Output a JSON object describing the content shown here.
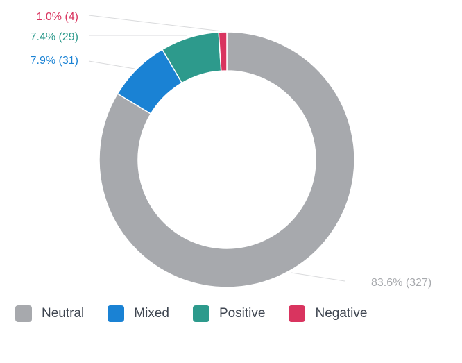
{
  "chart_data": {
    "type": "pie",
    "variant": "donut",
    "title": "",
    "series": [
      {
        "name": "Neutral",
        "value": 327,
        "percent_label": "83.6% (327)",
        "color": "#a7a9ad"
      },
      {
        "name": "Mixed",
        "value": 31,
        "percent_label": "7.9% (31)",
        "color": "#1a82d4"
      },
      {
        "name": "Positive",
        "value": 29,
        "percent_label": "7.4% (29)",
        "color": "#2d9a8c"
      },
      {
        "name": "Negative",
        "value": 4,
        "percent_label": "1.0% (4)",
        "color": "#d9345f"
      }
    ],
    "legend_position": "bottom-left"
  }
}
